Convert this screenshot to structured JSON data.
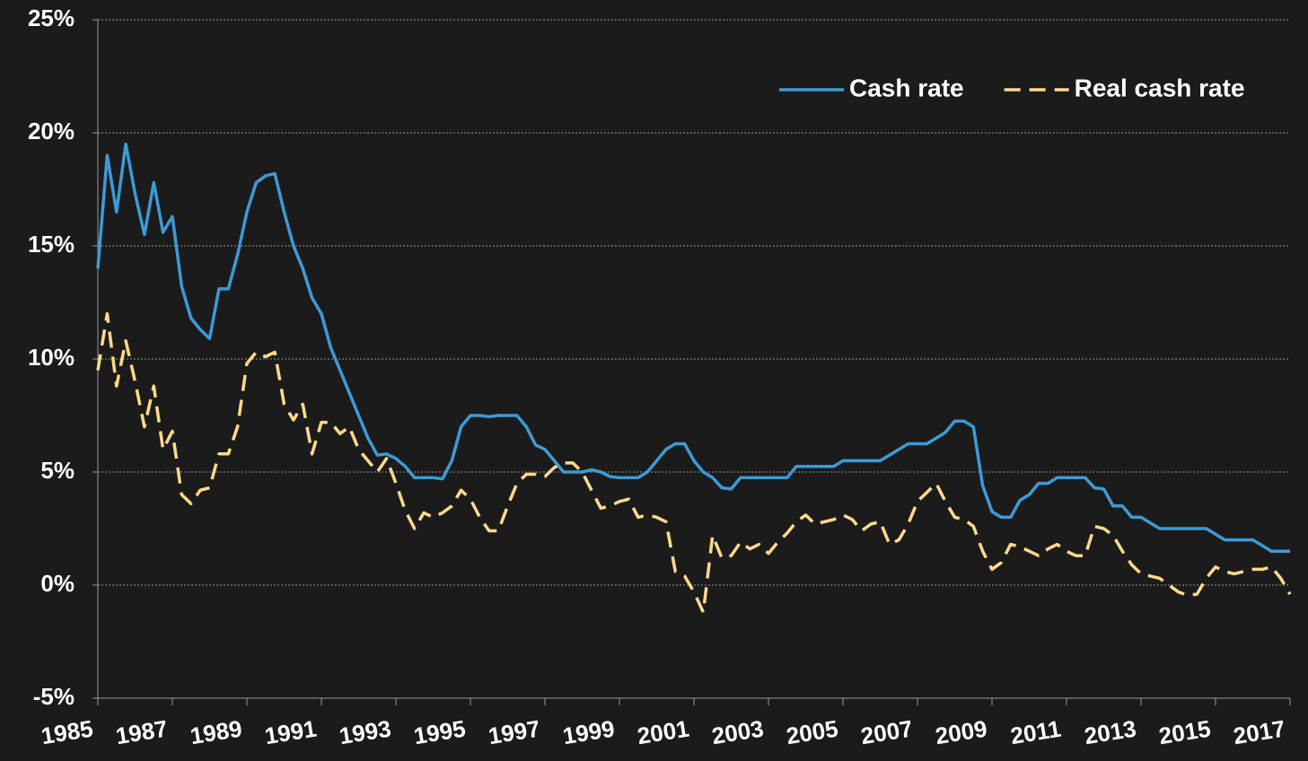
{
  "chart_data": {
    "type": "line",
    "x": [
      1985,
      1985.25,
      1985.5,
      1985.75,
      1986,
      1986.25,
      1986.5,
      1986.75,
      1987,
      1987.25,
      1987.5,
      1987.75,
      1988,
      1988.25,
      1988.5,
      1988.75,
      1989,
      1989.25,
      1989.5,
      1989.75,
      1990,
      1990.25,
      1990.5,
      1990.75,
      1991,
      1991.25,
      1991.5,
      1991.75,
      1992,
      1992.25,
      1992.5,
      1992.75,
      1993,
      1993.25,
      1993.5,
      1993.75,
      1994,
      1994.25,
      1994.5,
      1994.75,
      1995,
      1995.25,
      1995.5,
      1995.75,
      1996,
      1996.25,
      1996.5,
      1996.75,
      1997,
      1997.25,
      1997.5,
      1997.75,
      1998,
      1998.25,
      1998.5,
      1998.75,
      1999,
      1999.25,
      1999.5,
      1999.75,
      2000,
      2000.25,
      2000.5,
      2000.75,
      2001,
      2001.25,
      2001.5,
      2001.75,
      2002,
      2002.25,
      2002.5,
      2002.75,
      2003,
      2003.25,
      2003.5,
      2003.75,
      2004,
      2004.25,
      2004.5,
      2004.75,
      2005,
      2005.25,
      2005.5,
      2005.75,
      2006,
      2006.25,
      2006.5,
      2006.75,
      2007,
      2007.25,
      2007.5,
      2007.75,
      2008,
      2008.25,
      2008.5,
      2008.75,
      2009,
      2009.25,
      2009.5,
      2009.75,
      2010,
      2010.25,
      2010.5,
      2010.75,
      2011,
      2011.25,
      2011.5,
      2011.75,
      2012,
      2012.25,
      2012.5,
      2012.75,
      2013,
      2013.25,
      2013.5,
      2013.75,
      2014,
      2014.25,
      2014.5,
      2014.75,
      2015,
      2015.25,
      2015.5,
      2015.75,
      2016,
      2016.25,
      2016.5,
      2016.75,
      2017
    ],
    "series": [
      {
        "name": "Cash rate",
        "color": "#3d9ad6",
        "dash": false,
        "values": [
          14.0,
          19.0,
          16.5,
          19.5,
          17.3,
          15.5,
          17.8,
          15.6,
          16.3,
          13.2,
          11.8,
          11.3,
          10.9,
          13.1,
          13.1,
          14.6,
          16.5,
          17.8,
          18.1,
          18.2,
          16.5,
          15.0,
          14.0,
          12.7,
          12.0,
          10.5,
          9.5,
          8.5,
          7.5,
          6.5,
          5.75,
          5.8,
          5.6,
          5.25,
          4.75,
          4.75,
          4.75,
          4.7,
          5.5,
          7.0,
          7.5,
          7.5,
          7.45,
          7.5,
          7.5,
          7.5,
          7.0,
          6.2,
          6.0,
          5.5,
          5.0,
          5.0,
          5.0,
          5.1,
          5.0,
          4.8,
          4.75,
          4.75,
          4.75,
          5.0,
          5.5,
          6.0,
          6.25,
          6.25,
          5.5,
          5.0,
          4.75,
          4.3,
          4.25,
          4.75,
          4.75,
          4.75,
          4.75,
          4.75,
          4.75,
          5.25,
          5.25,
          5.25,
          5.25,
          5.25,
          5.5,
          5.5,
          5.5,
          5.5,
          5.5,
          5.75,
          6.0,
          6.25,
          6.25,
          6.25,
          6.5,
          6.75,
          7.25,
          7.25,
          7.0,
          4.4,
          3.25,
          3.0,
          3.0,
          3.75,
          4.0,
          4.5,
          4.5,
          4.75,
          4.75,
          4.75,
          4.75,
          4.3,
          4.25,
          3.5,
          3.5,
          3.0,
          3.0,
          2.75,
          2.5,
          2.5,
          2.5,
          2.5,
          2.5,
          2.5,
          2.25,
          2.0,
          2.0,
          2.0,
          2.0,
          1.75,
          1.5,
          1.5,
          1.5
        ]
      },
      {
        "name": "Real cash rate",
        "color": "#ffd98a",
        "dash": true,
        "values": [
          9.5,
          12.0,
          8.8,
          10.8,
          9.0,
          7.0,
          8.8,
          6.0,
          6.8,
          4.0,
          3.6,
          4.2,
          4.3,
          5.8,
          5.8,
          7.0,
          9.8,
          10.3,
          10.1,
          10.3,
          8.0,
          7.3,
          8.0,
          5.8,
          7.2,
          7.2,
          6.7,
          7.0,
          6.0,
          5.5,
          5.0,
          5.6,
          4.5,
          3.3,
          2.5,
          3.2,
          3.0,
          3.2,
          3.5,
          4.2,
          3.8,
          3.0,
          2.4,
          2.4,
          3.5,
          4.5,
          4.9,
          4.9,
          4.8,
          5.2,
          5.4,
          5.4,
          5.0,
          4.2,
          3.4,
          3.5,
          3.7,
          3.8,
          3.0,
          3.1,
          3.0,
          2.8,
          0.6,
          0.4,
          -0.3,
          -1.2,
          2.2,
          1.2,
          1.3,
          1.9,
          1.6,
          1.8,
          1.4,
          1.9,
          2.3,
          2.8,
          3.1,
          2.7,
          2.8,
          2.9,
          3.1,
          2.9,
          2.4,
          2.7,
          2.8,
          1.8,
          2.0,
          2.7,
          3.7,
          4.1,
          4.5,
          3.7,
          3.0,
          2.9,
          2.6,
          1.5,
          0.7,
          1.0,
          1.8,
          1.7,
          1.5,
          1.3,
          1.6,
          1.8,
          1.5,
          1.3,
          1.3,
          2.6,
          2.5,
          2.2,
          1.5,
          0.9,
          0.5,
          0.4,
          0.3,
          0.0,
          -0.3,
          -0.45,
          -0.4,
          0.3,
          0.8,
          0.6,
          0.5,
          0.6,
          0.7,
          0.7,
          0.8,
          0.3,
          -0.4
        ]
      }
    ],
    "xlim": [
      1985,
      2017
    ],
    "xticks": [
      1985,
      1987,
      1989,
      1991,
      1993,
      1995,
      1997,
      1999,
      2001,
      2003,
      2005,
      2007,
      2009,
      2011,
      2013,
      2015,
      2017
    ],
    "ylim": [
      -5,
      25
    ],
    "yticks": [
      {
        "value": -5,
        "label": "-5%"
      },
      {
        "value": 0,
        "label": "0%"
      },
      {
        "value": 5,
        "label": "5%"
      },
      {
        "value": 10,
        "label": "10%"
      },
      {
        "value": 15,
        "label": "15%"
      },
      {
        "value": 20,
        "label": "20%"
      },
      {
        "value": 25,
        "label": "25%"
      }
    ],
    "grid": true,
    "legend": "top-right"
  }
}
